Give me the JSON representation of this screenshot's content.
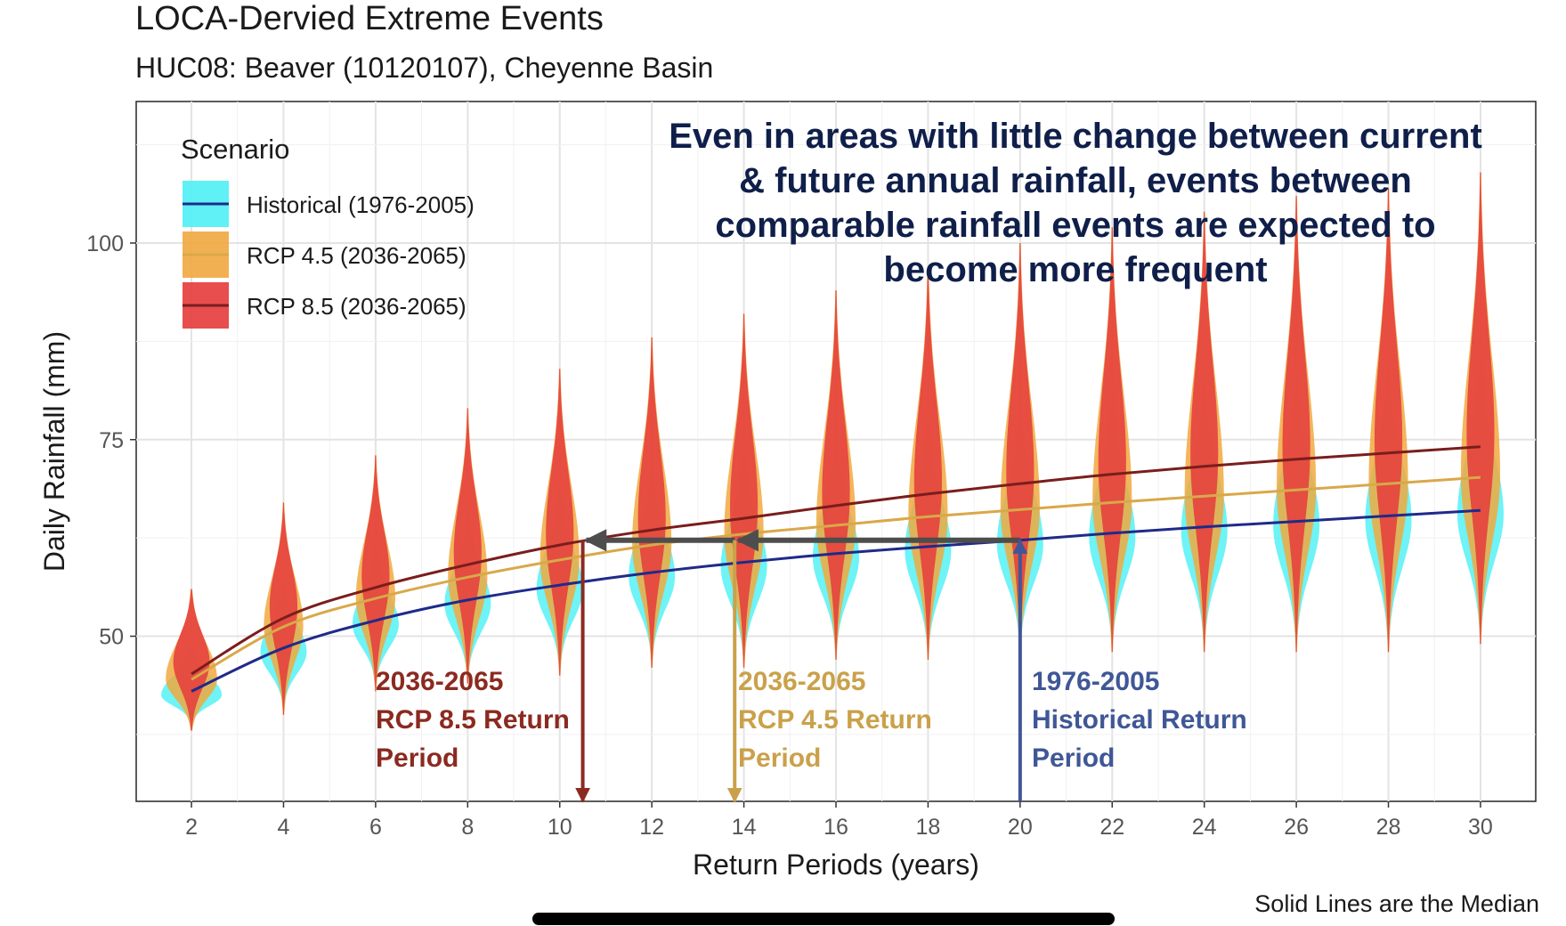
{
  "header": {
    "title": "LOCA-Dervied Extreme Events",
    "subtitle": "HUC08: Beaver (10120107), Cheyenne Basin"
  },
  "footnote": "Solid Lines are the Median",
  "colors": {
    "historical_fill": "#4ef0f5",
    "historical_line": "#1f2a8a",
    "rcp45_fill": "#f0a940",
    "rcp45_line": "#d9a84a",
    "rcp85_fill": "#e53b3b",
    "rcp85_line": "#7a1d1d",
    "arrow_hist": "#3f5796",
    "arrow_45": "#caa14a",
    "arrow_85": "#8b2a20",
    "horizontal_arrow": "#4d4d4d",
    "annotation_text": "#0f1f4a"
  },
  "chart_data": {
    "type": "line",
    "title": "LOCA-Dervied Extreme Events",
    "subtitle": "HUC08: Beaver (10120107), Cheyenne Basin",
    "xlabel": "Return Periods (years)",
    "ylabel": "Daily Rainfall (mm)",
    "xlim": [
      0.8,
      31.2
    ],
    "ylim": [
      29,
      118
    ],
    "x_ticks": [
      2,
      4,
      6,
      8,
      10,
      12,
      14,
      16,
      18,
      20,
      22,
      24,
      26,
      28,
      30
    ],
    "y_ticks": [
      50,
      75,
      100
    ],
    "grid": true,
    "legend": {
      "title": "Scenario",
      "position": "top-left",
      "entries": [
        "Historical (1976-2005)",
        "RCP 4.5 (2036-2065)",
        "RCP 8.5 (2036-2065)"
      ]
    },
    "x": [
      2,
      4,
      6,
      8,
      10,
      12,
      14,
      16,
      18,
      20,
      22,
      24,
      26,
      28,
      30
    ],
    "series": [
      {
        "name": "Historical (1976-2005)",
        "key": "hist",
        "values": [
          43,
          48.5,
          52,
          54.6,
          56.5,
          58.1,
          59.4,
          60.5,
          61.4,
          62.2,
          63.1,
          63.9,
          64.6,
          65.3,
          66
        ]
      },
      {
        "name": "RCP 4.5 (2036-2065)",
        "key": "rcp45",
        "values": [
          44.5,
          51.2,
          54.8,
          57.5,
          59.7,
          61.6,
          63,
          64.1,
          65.2,
          66.1,
          67,
          67.8,
          68.6,
          69.4,
          70.2
        ]
      },
      {
        "name": "RCP 8.5 (2036-2065)",
        "key": "rcp85",
        "values": [
          45.2,
          52.3,
          56.2,
          59.1,
          61.6,
          63.5,
          65,
          66.6,
          68.1,
          69.4,
          70.6,
          71.6,
          72.5,
          73.3,
          74.1
        ]
      }
    ],
    "distributions": [
      {
        "x": 2,
        "min": 38,
        "max": 56
      },
      {
        "x": 4,
        "min": 40,
        "max": 67
      },
      {
        "x": 6,
        "min": 43,
        "max": 73
      },
      {
        "x": 8,
        "min": 44,
        "max": 79
      },
      {
        "x": 10,
        "min": 45,
        "max": 84
      },
      {
        "x": 12,
        "min": 46,
        "max": 88
      },
      {
        "x": 14,
        "min": 46,
        "max": 91
      },
      {
        "x": 16,
        "min": 47,
        "max": 94
      },
      {
        "x": 18,
        "min": 47,
        "max": 97
      },
      {
        "x": 20,
        "min": 48,
        "max": 100
      },
      {
        "x": 22,
        "min": 48,
        "max": 102
      },
      {
        "x": 24,
        "min": 48,
        "max": 104
      },
      {
        "x": 26,
        "min": 48,
        "max": 106
      },
      {
        "x": 28,
        "min": 48,
        "max": 107
      },
      {
        "x": 30,
        "min": 49,
        "max": 109
      }
    ],
    "annotation": "Even in areas with little change between current & future annual rainfall, events between comparable rainfall events are expected to become more frequent",
    "return_period_markers": {
      "rainfall_level": 62.2,
      "rcp85": {
        "x": 10.5,
        "label_lines": [
          "2036-2065",
          "RCP 8.5 Return",
          "Period"
        ]
      },
      "rcp45": {
        "x": 13.8,
        "label_lines": [
          "2036-2065",
          "RCP 4.5 Return",
          "Period"
        ]
      },
      "hist": {
        "x": 20,
        "label_lines": [
          "1976-2005",
          "Historical Return",
          "Period"
        ]
      }
    }
  }
}
